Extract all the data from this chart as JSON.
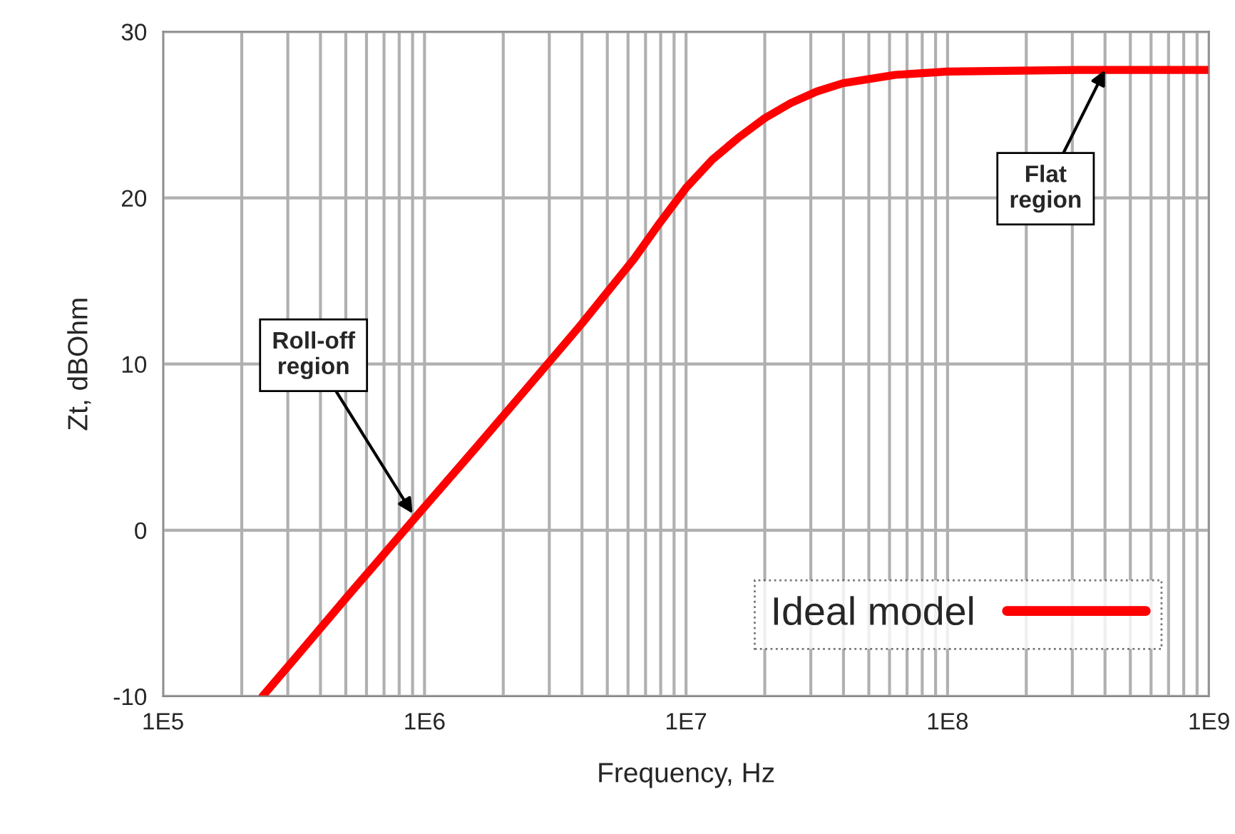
{
  "chart_data": {
    "type": "line",
    "xlabel": "Frequency, Hz",
    "ylabel": "Zt, dBOhm",
    "log": "x",
    "grid": true,
    "legend": "bottom right",
    "xlim": [
      100000,
      1000000000
    ],
    "ylim": [
      -10,
      30
    ],
    "yticks": [
      -10,
      0,
      10,
      20,
      30
    ],
    "xticks": [
      {
        "value": 100000,
        "label": "1E5"
      },
      {
        "value": 200000,
        "label": null
      },
      {
        "value": 300000,
        "label": null
      },
      {
        "value": 400000,
        "label": null
      },
      {
        "value": 500000,
        "label": null
      },
      {
        "value": 600000,
        "label": null
      },
      {
        "value": 700000,
        "label": null
      },
      {
        "value": 800000,
        "label": null
      },
      {
        "value": 900000,
        "label": null
      },
      {
        "value": 1000000,
        "label": "1E6"
      },
      {
        "value": 2000000,
        "label": null
      },
      {
        "value": 3000000,
        "label": null
      },
      {
        "value": 4000000,
        "label": null
      },
      {
        "value": 5000000,
        "label": null
      },
      {
        "value": 6000000,
        "label": null
      },
      {
        "value": 7000000,
        "label": null
      },
      {
        "value": 8000000,
        "label": null
      },
      {
        "value": 9000000,
        "label": null
      },
      {
        "value": 10000000,
        "label": "1E7"
      },
      {
        "value": 20000000,
        "label": null
      },
      {
        "value": 30000000,
        "label": null
      },
      {
        "value": 40000000,
        "label": null
      },
      {
        "value": 50000000,
        "label": null
      },
      {
        "value": 60000000,
        "label": null
      },
      {
        "value": 70000000,
        "label": null
      },
      {
        "value": 80000000,
        "label": null
      },
      {
        "value": 90000000,
        "label": null
      },
      {
        "value": 100000000,
        "label": "1E8"
      },
      {
        "value": 200000000,
        "label": null
      },
      {
        "value": 300000000,
        "label": null
      },
      {
        "value": 400000000,
        "label": null
      },
      {
        "value": 500000000,
        "label": null
      },
      {
        "value": 600000000,
        "label": null
      },
      {
        "value": 700000000,
        "label": null
      },
      {
        "value": 800000000,
        "label": null
      },
      {
        "value": 900000000,
        "label": null
      },
      {
        "value": 1000000000,
        "label": "1E9"
      }
    ],
    "x": [
      240000,
      316000,
      500000,
      1000000,
      1580000,
      2510000,
      3980000,
      6310000,
      7940000,
      10000000,
      12600000,
      15800000,
      20000000,
      25100000,
      31600000,
      39800000,
      63100000,
      100000000,
      316000000,
      1000000000
    ],
    "series": [
      {
        "name": "Ideal model",
        "color": "#ff0000",
        "values": [
          -10,
          -7.8,
          -4.1,
          1.4,
          5.0,
          8.7,
          12.4,
          16.3,
          18.5,
          20.6,
          22.3,
          23.6,
          24.8,
          25.7,
          26.4,
          26.9,
          27.4,
          27.6,
          27.7,
          27.7
        ]
      }
    ],
    "annotations": [
      {
        "text": "Roll-off\nregion",
        "x": 900000,
        "y": 1
      },
      {
        "text": "Flat\nregion",
        "x": 400000000,
        "y": 27.7
      }
    ]
  }
}
